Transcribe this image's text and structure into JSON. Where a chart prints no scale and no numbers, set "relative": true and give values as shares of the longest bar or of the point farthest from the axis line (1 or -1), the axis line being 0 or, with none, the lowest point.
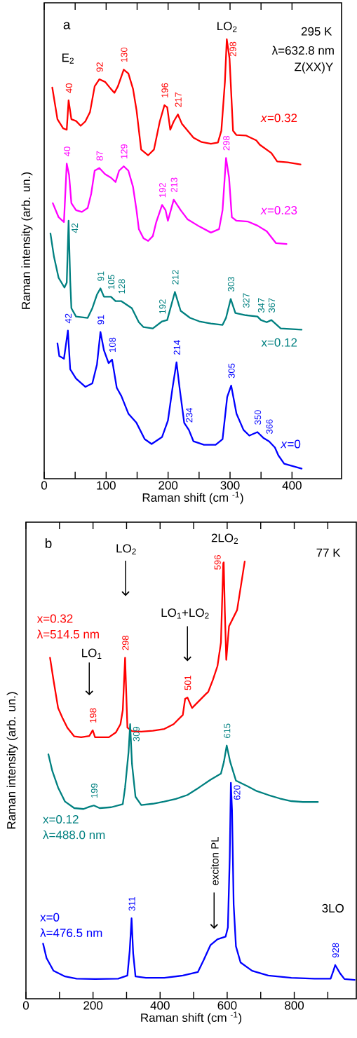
{
  "chart_data": [
    {
      "type": "line",
      "relative": true,
      "xlabel": "Raman shift (cm $^{-1}$)",
      "ylabel": "Raman intensity (arb. un.)",
      "xlim": [
        0,
        480
      ],
      "xticks": [
        0,
        {
          "value": 50,
          "label": null
        },
        100,
        {
          "value": 150,
          "label": null
        },
        200,
        {
          "value": 250,
          "label": null
        },
        300,
        {
          "value": 350,
          "label": null
        },
        400
      ],
      "annotations": [
        "a",
        "295 K",
        "λ=632.8 nm",
        "Z(XX)Y",
        "E$_{2}$",
        "LO$_{2}$",
        {
          "text": "40",
          "x": 39.4,
          "y": 0.861
        },
        {
          "text": "92",
          "x": 89.0,
          "y": 0.909
        },
        {
          "text": "130",
          "x": 128.4,
          "y": 0.931
        },
        {
          "text": "196",
          "x": 194.1,
          "y": 0.85
        },
        {
          "text": "217",
          "x": 215.8,
          "y": 0.829
        },
        {
          "text": "298",
          "x": 294.7,
          "y": 1.0
        },
        {
          "text": "40",
          "x": 36.4,
          "y": 0.717
        },
        {
          "text": "87",
          "x": 89.0,
          "y": 0.707
        },
        {
          "text": "129",
          "x": 128.4,
          "y": 0.711
        },
        {
          "text": "192",
          "x": 190.3,
          "y": 0.623
        },
        {
          "text": "213",
          "x": 209.1,
          "y": 0.635
        },
        {
          "text": "298",
          "x": 293.5,
          "y": 0.73
        },
        {
          "text": "42",
          "x": 39.4,
          "y": 0.587
        },
        {
          "text": "91",
          "x": 90.8,
          "y": 0.433
        },
        {
          "text": "105",
          "x": 107.7,
          "y": 0.414
        },
        {
          "text": "128",
          "x": 124.6,
          "y": 0.404
        },
        {
          "text": "192",
          "x": 190.3,
          "y": 0.358
        },
        {
          "text": "212",
          "x": 211.0,
          "y": 0.425
        },
        {
          "text": "303",
          "x": 301.1,
          "y": 0.409
        },
        {
          "text": "327",
          "x": 325.5,
          "y": 0.372
        },
        {
          "text": "347",
          "x": 349.8,
          "y": 0.361
        },
        {
          "text": "367",
          "x": 366.7,
          "y": 0.361
        },
        {
          "text": "42",
          "x": 38.3,
          "y": 0.337
        },
        {
          "text": "91",
          "x": 90.8,
          "y": 0.334
        },
        {
          "text": "108",
          "x": 109.6,
          "y": 0.271
        },
        {
          "text": "214",
          "x": 213.6,
          "y": 0.265
        },
        {
          "text": "234",
          "x": 233.5,
          "y": 0.111
        },
        {
          "text": "305",
          "x": 301.8,
          "y": 0.212
        },
        {
          "text": "350",
          "x": 344.2,
          "y": 0.106
        },
        {
          "text": "366",
          "x": 363.0,
          "y": 0.085
        }
      ],
      "series": [
        {
          "name": "*x*=0.32",
          "color": "#ff0000",
          "x": [
            13.1,
            21.4,
            30.8,
            36.4,
            39.4,
            43.9,
            51.4,
            58.9,
            66.4,
            73.9,
            81.5,
            89.0,
            98.3,
            107.7,
            113.4,
            119.0,
            128.4,
            135.9,
            143.4,
            149.0,
            156.5,
            167.8,
            177.2,
            186.6,
            194.1,
            198.6,
            203.5,
            209.1,
            215.8,
            222.2,
            231.6,
            241.0,
            254.1,
            269.1,
            280.4,
            286.0,
            291.7,
            294.7,
            299.2,
            304.8,
            310.4,
            325.5,
            342.3,
            348.0,
            366.7,
            376.1,
            393.0,
            413.7
          ],
          "values": [
            0.89,
            0.818,
            0.797,
            0.794,
            0.861,
            0.818,
            0.814,
            0.803,
            0.813,
            0.834,
            0.893,
            0.909,
            0.903,
            0.887,
            0.878,
            0.893,
            0.931,
            0.922,
            0.887,
            0.839,
            0.749,
            0.736,
            0.749,
            0.813,
            0.85,
            0.845,
            0.794,
            0.813,
            0.829,
            0.808,
            0.792,
            0.776,
            0.766,
            0.762,
            0.765,
            0.792,
            0.903,
            1.0,
            0.956,
            0.792,
            0.782,
            0.781,
            0.77,
            0.76,
            0.741,
            0.722,
            0.72,
            0.715
          ]
        },
        {
          "name": "*x*=0.23",
          "color": "#ff00ff",
          "x": [
            13.9,
            23.3,
            31.9,
            36.4,
            40.2,
            43.9,
            51.4,
            60.8,
            70.2,
            75.8,
            81.5,
            89.0,
            98.3,
            107.7,
            115.2,
            120.9,
            128.4,
            135.9,
            143.4,
            149.0,
            152.8,
            160.3,
            167.8,
            175.3,
            180.9,
            190.3,
            195.9,
            199.7,
            209.1,
            220.3,
            231.6,
            250.4,
            269.1,
            282.3,
            287.9,
            293.5,
            298.4,
            302.9,
            310.4,
            329.2,
            344.2,
            359.2,
            374.2,
            391.1
          ],
          "values": [
            0.627,
            0.595,
            0.584,
            0.717,
            0.691,
            0.627,
            0.611,
            0.607,
            0.616,
            0.648,
            0.701,
            0.707,
            0.693,
            0.685,
            0.675,
            0.701,
            0.711,
            0.701,
            0.664,
            0.611,
            0.568,
            0.547,
            0.541,
            0.552,
            0.584,
            0.623,
            0.611,
            0.587,
            0.635,
            0.611,
            0.59,
            0.574,
            0.56,
            0.568,
            0.611,
            0.73,
            0.685,
            0.595,
            0.587,
            0.585,
            0.576,
            0.563,
            0.536,
            0.534
          ]
        },
        {
          "name": "x=0.12",
          "color": "#008080",
          "x": [
            10.1,
            15.8,
            23.3,
            32.7,
            36.4,
            39.4,
            42.0,
            43.9,
            51.4,
            70.2,
            77.7,
            85.2,
            90.8,
            96.5,
            107.7,
            115.2,
            124.6,
            141.5,
            152.8,
            160.3,
            175.3,
            190.3,
            198.6,
            211.0,
            220.3,
            235.4,
            250.4,
            269.1,
            287.9,
            293.5,
            301.1,
            308.6,
            325.5,
            344.2,
            349.8,
            359.2,
            366.7,
            381.8,
            415.5
          ],
          "values": [
            0.558,
            0.505,
            0.457,
            0.435,
            0.446,
            0.587,
            0.451,
            0.388,
            0.369,
            0.366,
            0.388,
            0.419,
            0.433,
            0.414,
            0.414,
            0.404,
            0.404,
            0.388,
            0.356,
            0.345,
            0.342,
            0.358,
            0.361,
            0.425,
            0.382,
            0.366,
            0.358,
            0.353,
            0.35,
            0.366,
            0.409,
            0.377,
            0.372,
            0.369,
            0.361,
            0.356,
            0.361,
            0.342,
            0.339
          ]
        },
        {
          "name": "*x*=0",
          "color": "#0000ff",
          "x": [
            21.4,
            24.4,
            31.9,
            38.3,
            42.0,
            51.4,
            66.4,
            77.7,
            85.2,
            90.8,
            96.5,
            104.0,
            109.6,
            117.1,
            124.6,
            135.9,
            149.0,
            162.2,
            173.4,
            190.3,
            199.7,
            207.2,
            213.6,
            218.5,
            226.0,
            233.5,
            241.0,
            257.9,
            276.7,
            287.9,
            295.4,
            301.8,
            310.4,
            321.7,
            331.1,
            344.2,
            353.6,
            363.0,
            372.4,
            378.0,
            387.4,
            400.5,
            415.5
          ],
          "values": [
            0.308,
            0.279,
            0.273,
            0.337,
            0.249,
            0.228,
            0.209,
            0.217,
            0.26,
            0.334,
            0.292,
            0.263,
            0.271,
            0.207,
            0.188,
            0.148,
            0.127,
            0.09,
            0.079,
            0.095,
            0.132,
            0.207,
            0.265,
            0.207,
            0.127,
            0.111,
            0.085,
            0.077,
            0.077,
            0.09,
            0.186,
            0.212,
            0.148,
            0.111,
            0.098,
            0.106,
            0.093,
            0.085,
            0.071,
            0.053,
            0.034,
            0.029,
            0.023
          ]
        }
      ]
    },
    {
      "type": "line",
      "relative": true,
      "xlabel": "Raman shift (cm $^{-1}$)",
      "ylabel": "Raman intensity (arb. un.)",
      "xlim": [
        0,
        985
      ],
      "xticks": [
        0,
        {
          "value": 100,
          "label": null
        },
        200,
        {
          "value": 300,
          "label": null
        },
        400,
        {
          "value": 500,
          "label": null
        },
        600,
        {
          "value": 700,
          "label": null
        },
        800,
        {
          "value": 900,
          "label": null
        }
      ],
      "annotations": [
        "b",
        "77 K",
        "LO$_{2}$",
        "2LO$_{2}$",
        "LO$_{1}$+LO$_{2}$",
        "LO$_{1}$",
        "exciton PL",
        "3LO",
        "λ=514.5 nm",
        "λ=488.0 nm",
        "λ=476.5 nm",
        {
          "text": "198",
          "x": 199.1,
          "y": 0.614
        },
        {
          "text": "298",
          "x": 295.6,
          "y": 0.78
        },
        {
          "text": "501",
          "x": 481.5,
          "y": 0.689
        },
        {
          "text": "596",
          "x": 589.7,
          "y": 0.998
        },
        {
          "text": "199",
          "x": 202.6,
          "y": 0.442
        },
        {
          "text": "309",
          "x": 310.7,
          "y": 0.628
        },
        {
          "text": "615",
          "x": 598.6,
          "y": 0.579
        },
        {
          "text": "311",
          "x": 314.9,
          "y": 0.184
        },
        {
          "text": "620",
          "x": 611.0,
          "y": 0.494
        },
        {
          "text": "928",
          "x": 922.2,
          "y": 0.077
        }
      ],
      "series": [
        {
          "name": "x=0.32",
          "color": "#ff0000",
          "x": [
            71.8,
            82.1,
            92.4,
            95.9,
            109.6,
            123.4,
            144.1,
            164.7,
            188.8,
            199.1,
            206.0,
            219.8,
            247.4,
            268.0,
            281.8,
            288.7,
            295.6,
            302.5,
            316.2,
            343.8,
            378.2,
            412.6,
            440.2,
            467.7,
            474.6,
            481.5,
            495.3,
            516.0,
            536.6,
            543.5,
            557.3,
            571.1,
            581.4,
            588.3,
            589.7,
            593.1,
            597.3,
            605.5,
            629.6,
            652.3
          ],
          "values": [
            0.78,
            0.729,
            0.681,
            0.665,
            0.641,
            0.62,
            0.6,
            0.598,
            0.601,
            0.614,
            0.598,
            0.598,
            0.598,
            0.609,
            0.628,
            0.66,
            0.78,
            0.62,
            0.612,
            0.611,
            0.613,
            0.617,
            0.628,
            0.649,
            0.686,
            0.689,
            0.665,
            0.681,
            0.697,
            0.702,
            0.729,
            0.761,
            0.815,
            0.996,
            0.998,
            0.884,
            0.775,
            0.852,
            0.889,
            1.0
          ]
        },
        {
          "name": "x=0.12",
          "color": "#008080",
          "x": [
            66.9,
            78.6,
            95.9,
            116.5,
            144.1,
            171.6,
            188.8,
            202.6,
            219.8,
            254.3,
            288.7,
            295.6,
            305.9,
            310.7,
            316.2,
            326.6,
            343.8,
            378.2,
            412.6,
            447.0,
            481.5,
            516.0,
            550.4,
            581.4,
            590.3,
            598.6,
            608.9,
            626.1,
            660.5,
            688.1,
            722.5,
            756.9,
            791.3,
            825.8,
            870.6
          ],
          "values": [
            0.559,
            0.521,
            0.483,
            0.451,
            0.436,
            0.434,
            0.439,
            0.442,
            0.436,
            0.438,
            0.445,
            0.483,
            0.564,
            0.628,
            0.537,
            0.462,
            0.443,
            0.446,
            0.451,
            0.457,
            0.466,
            0.483,
            0.501,
            0.515,
            0.542,
            0.579,
            0.542,
            0.499,
            0.486,
            0.475,
            0.466,
            0.458,
            0.452,
            0.45,
            0.45
          ]
        },
        {
          "name": "x=0",
          "color": "#0000ff",
          "x": [
            51.1,
            61.4,
            82.1,
            116.5,
            150.9,
            206.0,
            274.9,
            302.5,
            309.4,
            314.9,
            319.7,
            326.6,
            357.6,
            412.6,
            467.7,
            512.5,
            529.7,
            550.4,
            571.1,
            595.2,
            602.1,
            607.6,
            611.0,
            614.5,
            619.3,
            626.1,
            639.9,
            674.4,
            722.5,
            791.3,
            860.2,
            908.4,
            916.7,
            922.2,
            935.9,
            949.7,
            980.0
          ],
          "values": [
            0.126,
            0.093,
            0.064,
            0.051,
            0.046,
            0.045,
            0.046,
            0.053,
            0.11,
            0.184,
            0.104,
            0.051,
            0.048,
            0.048,
            0.053,
            0.061,
            0.088,
            0.123,
            0.136,
            0.142,
            0.163,
            0.323,
            0.494,
            0.43,
            0.216,
            0.12,
            0.083,
            0.064,
            0.053,
            0.048,
            0.046,
            0.046,
            0.064,
            0.077,
            0.059,
            0.045,
            0.043
          ]
        }
      ]
    }
  ]
}
